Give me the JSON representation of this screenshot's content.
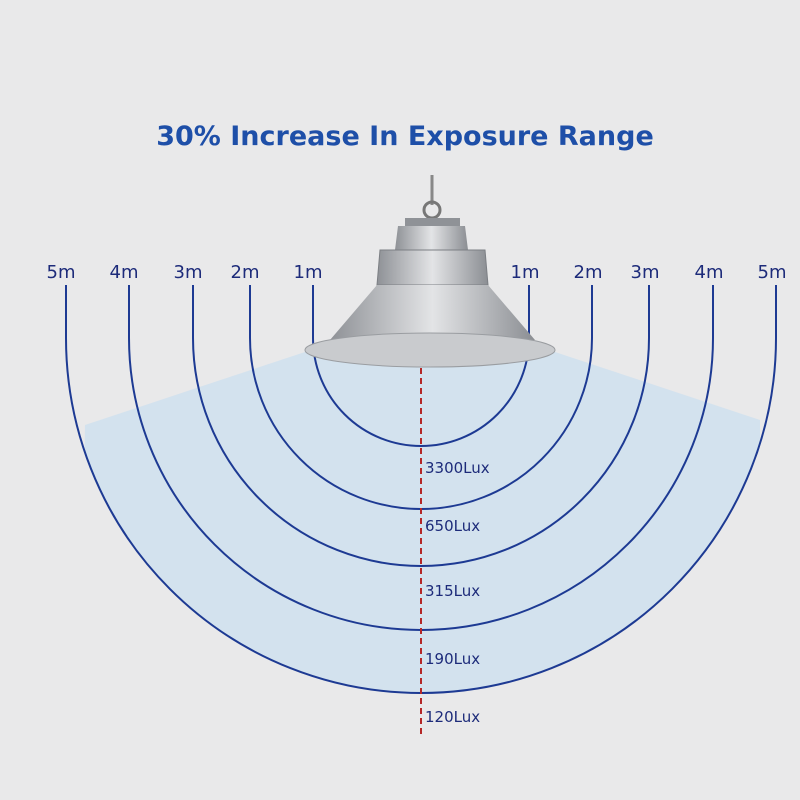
{
  "title": "30% Increase In Exposure Range",
  "rings": [
    {
      "left_label": "1m",
      "right_label": "1m",
      "lux_label": "3300Lux"
    },
    {
      "left_label": "2m",
      "right_label": "2m",
      "lux_label": "650Lux"
    },
    {
      "left_label": "3m",
      "right_label": "3m",
      "lux_label": "315Lux"
    },
    {
      "left_label": "4m",
      "right_label": "4m",
      "lux_label": "190Lux"
    },
    {
      "left_label": "5m",
      "right_label": "5m",
      "lux_label": "120Lux"
    }
  ]
}
